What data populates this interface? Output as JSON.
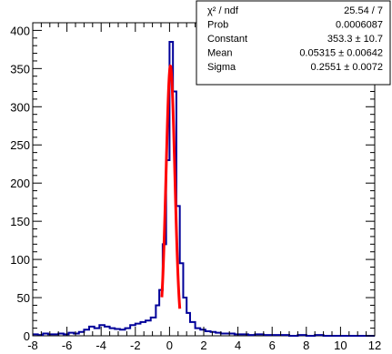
{
  "chart_data": {
    "type": "histogram",
    "title": "",
    "xlabel": "",
    "ylabel": "",
    "xlim": [
      -8,
      12
    ],
    "ylim": [
      0,
      410
    ],
    "x_ticks": [
      -8,
      -6,
      -4,
      -2,
      0,
      2,
      4,
      6,
      8,
      10,
      12
    ],
    "y_ticks": [
      0,
      50,
      100,
      150,
      200,
      250,
      300,
      350,
      400
    ],
    "histogram": {
      "color": "#000099",
      "bin_edges": [
        -8,
        -7.7,
        -7.4,
        -7.1,
        -6.8,
        -6.5,
        -6.2,
        -5.9,
        -5.6,
        -5.3,
        -5.0,
        -4.7,
        -4.4,
        -4.1,
        -3.8,
        -3.5,
        -3.2,
        -2.9,
        -2.6,
        -2.3,
        -2.0,
        -1.7,
        -1.4,
        -1.1,
        -0.8,
        -0.6,
        -0.4,
        -0.2,
        0.0,
        0.2,
        0.4,
        0.6,
        0.8,
        1.0,
        1.2,
        1.5,
        1.8,
        2.1,
        2.4,
        2.7,
        3.0,
        3.4,
        3.8,
        4.2,
        4.6,
        5.0,
        5.5,
        6.0,
        6.5,
        7.0,
        7.5,
        8.0,
        8.5,
        9.0,
        9.5,
        10.0,
        10.5,
        11.0,
        11.5,
        12.0
      ],
      "counts": [
        2,
        1,
        3,
        2,
        2,
        3,
        2,
        4,
        3,
        5,
        8,
        12,
        10,
        14,
        12,
        10,
        9,
        8,
        10,
        14,
        16,
        18,
        20,
        24,
        40,
        60,
        120,
        230,
        385,
        320,
        170,
        95,
        50,
        30,
        18,
        10,
        8,
        6,
        5,
        4,
        3,
        3,
        2,
        2,
        1,
        2,
        1,
        1,
        1,
        0,
        1,
        0,
        1,
        0,
        0,
        0,
        0,
        0,
        0
      ]
    },
    "fit": {
      "function": "gaus",
      "color": "#ff0000",
      "constant": 353.3,
      "mean": 0.05315,
      "sigma": 0.2551,
      "range": [
        -0.45,
        0.6
      ]
    },
    "stats_box": {
      "rows": [
        {
          "label": "χ² / ndf",
          "value": "25.54 / 7"
        },
        {
          "label": "Prob",
          "value": "0.0006087"
        },
        {
          "label": "Constant",
          "value": "353.3 ± 10.7"
        },
        {
          "label": "Mean",
          "value": "0.05315 ± 0.00642"
        },
        {
          "label": "Sigma",
          "value": "0.2551 ± 0.0072"
        }
      ]
    }
  }
}
